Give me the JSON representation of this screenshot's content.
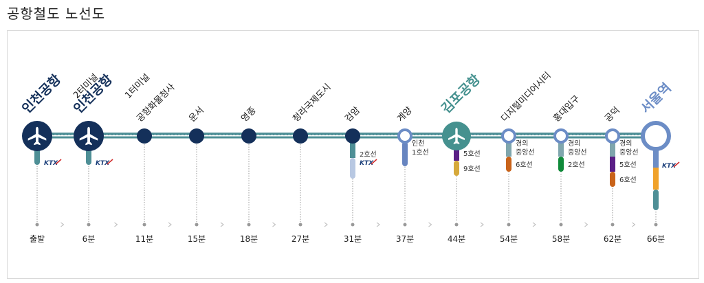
{
  "title": "공항철도 노선도",
  "colors": {
    "line": "#4e8f96",
    "station": "#14305a",
    "gimpo": "#45918f",
    "seoul": "#6c8dc6",
    "label_dark": "#1c1c1c",
    "transfer_label": "#333333",
    "ktx": "#1b3f7a",
    "arrow": "#b8b8b8",
    "dot": "#999999",
    "line2": "#b8c8e2",
    "incheon1": "#6785c0",
    "line5": "#5a1f86",
    "line9": "#d6a93b",
    "gyeongui": "#7fa6ad",
    "line6": "#c9631a",
    "green": "#0f8a3a",
    "yellow": "#f0a22a"
  },
  "stations": [
    {
      "name": "인천공항",
      "sub": "2터미널",
      "time": "출발",
      "style": "airport",
      "ktx": true,
      "transfers": []
    },
    {
      "name": "인천공항",
      "sub": "1터미널",
      "time": "6분",
      "style": "airport",
      "ktx": true,
      "transfers": []
    },
    {
      "name": "공항화물청사",
      "sub": "",
      "time": "11분",
      "style": "normal",
      "ktx": false,
      "transfers": []
    },
    {
      "name": "운서",
      "sub": "",
      "time": "15분",
      "style": "normal",
      "ktx": false,
      "transfers": []
    },
    {
      "name": "영종",
      "sub": "",
      "time": "18분",
      "style": "normal",
      "ktx": false,
      "transfers": []
    },
    {
      "name": "청라국제도시",
      "sub": "",
      "time": "27분",
      "style": "normal",
      "ktx": false,
      "transfers": []
    },
    {
      "name": "검암",
      "sub": "",
      "time": "31분",
      "style": "normal",
      "ktx": true,
      "transfers": [
        {
          "label": "2호선",
          "color": "line2"
        }
      ]
    },
    {
      "name": "계양",
      "sub": "",
      "time": "37분",
      "style": "ring",
      "ktx": false,
      "transfers": [
        {
          "label": "인천\n1호선",
          "color": "incheon1"
        }
      ]
    },
    {
      "name": "김포공항",
      "sub": "",
      "time": "44분",
      "style": "gimpo",
      "ktx": false,
      "transfers": [
        {
          "label": "5호선",
          "color": "line5"
        },
        {
          "label": "9호선",
          "color": "line9"
        }
      ]
    },
    {
      "name": "디지털미디어시티",
      "sub": "",
      "time": "54분",
      "style": "ring",
      "ktx": false,
      "transfers": [
        {
          "label": "경의\n중앙선",
          "color": "gyeongui"
        },
        {
          "label": "6호선",
          "color": "line6"
        }
      ]
    },
    {
      "name": "홍대입구",
      "sub": "",
      "time": "58분",
      "style": "ring",
      "ktx": false,
      "transfers": [
        {
          "label": "경의\n중앙선",
          "color": "gyeongui"
        },
        {
          "label": "2호선",
          "color": "green"
        }
      ]
    },
    {
      "name": "공덕",
      "sub": "",
      "time": "62분",
      "style": "ring",
      "ktx": false,
      "transfers": [
        {
          "label": "경의\n중앙선",
          "color": "gyeongui"
        },
        {
          "label": "5호선",
          "color": "line5"
        },
        {
          "label": "6호선",
          "color": "line6"
        }
      ]
    },
    {
      "name": "서울역",
      "sub": "",
      "time": "66분",
      "style": "seoul",
      "ktx": true,
      "transfers": []
    }
  ],
  "ktx_label": "KTX"
}
